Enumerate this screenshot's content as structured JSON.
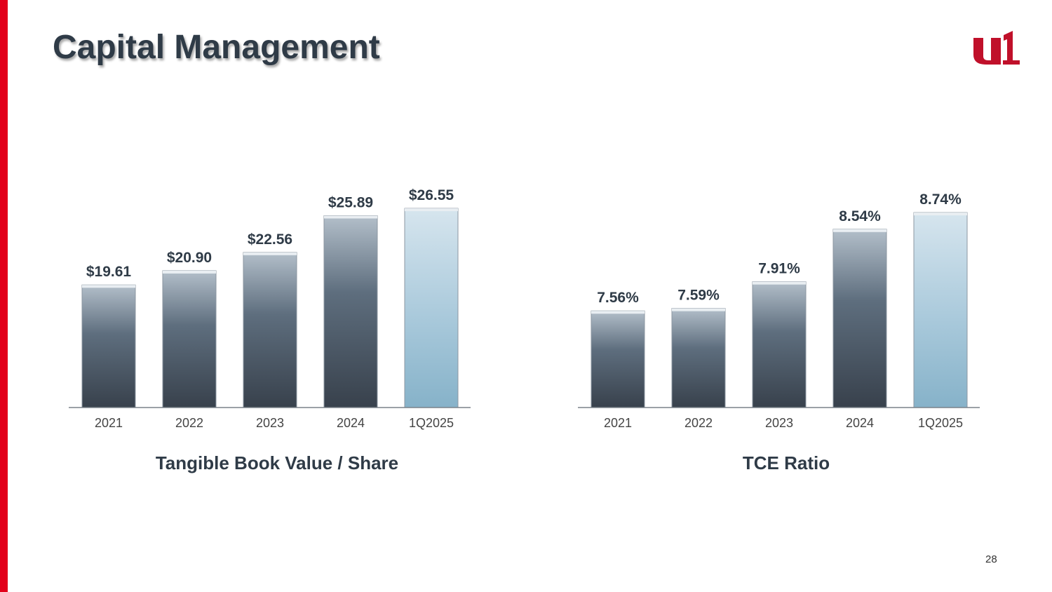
{
  "slide": {
    "title": "Capital Management",
    "page_number": "28"
  },
  "colors": {
    "accent": "#e2001a",
    "title": "#2f3b47",
    "bar_dark": "#3a4450",
    "bar_highlight": "#8fb8cf"
  },
  "logo": {
    "icon": "u1-logo-icon",
    "color": "#c0102a"
  },
  "chart_data": [
    {
      "type": "bar",
      "title": "Tangible Book Value / Share",
      "categories": [
        "2021",
        "2022",
        "2023",
        "2024",
        "1Q2025"
      ],
      "values": [
        19.61,
        20.9,
        22.56,
        25.89,
        26.55
      ],
      "labels": [
        "$19.61",
        "$20.90",
        "$22.56",
        "$25.89",
        "$26.55"
      ],
      "ylim": [
        8.5,
        27
      ],
      "highlight_index": 4,
      "grid": false,
      "legend": "none"
    },
    {
      "type": "bar",
      "title": "TCE Ratio",
      "categories": [
        "2021",
        "2022",
        "2023",
        "2024",
        "1Q2025"
      ],
      "values": [
        7.56,
        7.59,
        7.91,
        8.54,
        8.74
      ],
      "labels": [
        "7.56%",
        "7.59%",
        "7.91%",
        "8.54%",
        "8.74%"
      ],
      "ylim": [
        6.4,
        8.85
      ],
      "highlight_index": 4,
      "grid": false,
      "legend": "none"
    }
  ]
}
